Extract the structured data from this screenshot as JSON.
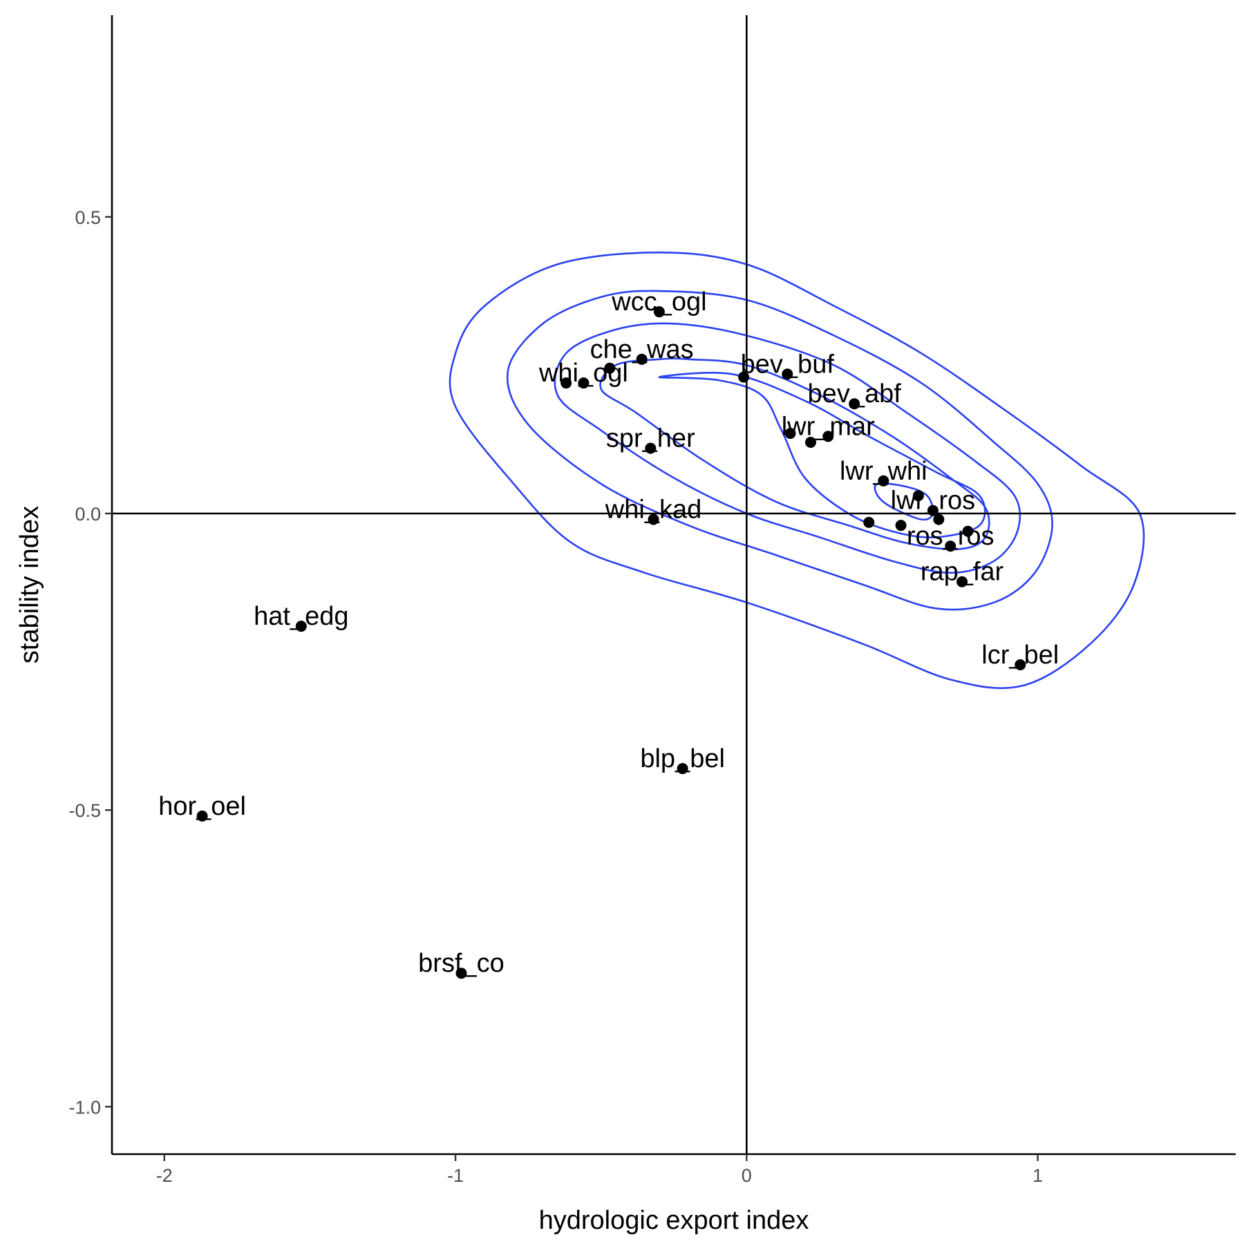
{
  "chart_data": {
    "type": "scatter",
    "title": "",
    "xlabel": "hydrologic export index",
    "ylabel": "stability index",
    "xlim": [
      -2.18,
      1.68
    ],
    "ylim": [
      -1.08,
      0.84
    ],
    "x_ticks": [
      {
        "value": -2,
        "label": "-2"
      },
      {
        "value": -1,
        "label": "-1"
      },
      {
        "value": 0,
        "label": "0"
      },
      {
        "value": 1,
        "label": "1"
      }
    ],
    "y_ticks": [
      {
        "value": 0.5,
        "label": "0.5"
      },
      {
        "value": 0.0,
        "label": "0.0"
      },
      {
        "value": -0.5,
        "label": "-0.5"
      },
      {
        "value": -1.0,
        "label": "-1.0"
      }
    ],
    "reference_lines": {
      "x": 0,
      "y": 0
    },
    "grid": false,
    "legend": "none",
    "point_color": "#000000",
    "contour_color": "#2a41f0",
    "points": [
      {
        "label": "wcc_ogl",
        "x": -0.3,
        "y": 0.34
      },
      {
        "label": "che_was",
        "x": -0.36,
        "y": 0.26
      },
      {
        "label": "",
        "x": -0.47,
        "y": 0.245
      },
      {
        "label": "whi_ogl",
        "x": -0.56,
        "y": 0.22
      },
      {
        "label": "",
        "x": -0.62,
        "y": 0.22
      },
      {
        "label": "bev_buf",
        "x": 0.14,
        "y": 0.235
      },
      {
        "label": "",
        "x": -0.01,
        "y": 0.23
      },
      {
        "label": "bev_abf",
        "x": 0.37,
        "y": 0.185
      },
      {
        "label": "lwr_mar",
        "x": 0.28,
        "y": 0.13
      },
      {
        "label": "",
        "x": 0.22,
        "y": 0.12
      },
      {
        "label": "",
        "x": 0.15,
        "y": 0.135
      },
      {
        "label": "spr_her",
        "x": -0.33,
        "y": 0.11
      },
      {
        "label": "lwr_whi",
        "x": 0.47,
        "y": 0.055
      },
      {
        "label": "",
        "x": 0.59,
        "y": 0.03
      },
      {
        "label": "lwr_ros",
        "x": 0.64,
        "y": 0.005
      },
      {
        "label": "",
        "x": 0.66,
        "y": -0.01
      },
      {
        "label": "",
        "x": 0.42,
        "y": -0.015
      },
      {
        "label": "",
        "x": 0.53,
        "y": -0.02
      },
      {
        "label": "",
        "x": 0.76,
        "y": -0.03
      },
      {
        "label": "ros_ros",
        "x": 0.7,
        "y": -0.055
      },
      {
        "label": "whi_kad",
        "x": -0.32,
        "y": -0.01
      },
      {
        "label": "rap_far",
        "x": 0.74,
        "y": -0.115
      },
      {
        "label": "lcr_bel",
        "x": 0.94,
        "y": -0.255
      },
      {
        "label": "hat_edg",
        "x": -1.53,
        "y": -0.19
      },
      {
        "label": "blp_bel",
        "x": -0.22,
        "y": -0.43
      },
      {
        "label": "hor_oel",
        "x": -1.87,
        "y": -0.51
      },
      {
        "label": "brsf_co",
        "x": -0.98,
        "y": -0.775
      }
    ],
    "contours": [
      [
        [
          -0.3,
          0.44
        ],
        [
          0.0,
          0.42
        ],
        [
          0.3,
          0.35
        ],
        [
          0.6,
          0.27
        ],
        [
          0.9,
          0.17
        ],
        [
          1.15,
          0.08
        ],
        [
          1.35,
          0.0
        ],
        [
          1.33,
          -0.12
        ],
        [
          1.18,
          -0.22
        ],
        [
          0.95,
          -0.29
        ],
        [
          0.7,
          -0.28
        ],
        [
          0.4,
          -0.22
        ],
        [
          0.0,
          -0.15
        ],
        [
          -0.35,
          -0.1
        ],
        [
          -0.6,
          -0.05
        ],
        [
          -0.8,
          0.05
        ],
        [
          -1.0,
          0.18
        ],
        [
          -1.0,
          0.27
        ],
        [
          -0.9,
          0.35
        ],
        [
          -0.65,
          0.42
        ],
        [
          -0.3,
          0.44
        ]
      ],
      [
        [
          -0.3,
          0.375
        ],
        [
          0.0,
          0.36
        ],
        [
          0.3,
          0.3
        ],
        [
          0.6,
          0.22
        ],
        [
          0.85,
          0.12
        ],
        [
          1.0,
          0.05
        ],
        [
          1.05,
          -0.02
        ],
        [
          0.99,
          -0.1
        ],
        [
          0.85,
          -0.15
        ],
        [
          0.65,
          -0.16
        ],
        [
          0.4,
          -0.12
        ],
        [
          0.1,
          -0.07
        ],
        [
          -0.2,
          -0.02
        ],
        [
          -0.5,
          0.05
        ],
        [
          -0.75,
          0.15
        ],
        [
          -0.82,
          0.24
        ],
        [
          -0.7,
          0.32
        ],
        [
          -0.5,
          0.365
        ],
        [
          -0.3,
          0.375
        ]
      ],
      [
        [
          -0.25,
          0.32
        ],
        [
          0.0,
          0.3
        ],
        [
          0.3,
          0.25
        ],
        [
          0.55,
          0.17
        ],
        [
          0.78,
          0.09
        ],
        [
          0.92,
          0.03
        ],
        [
          0.93,
          -0.03
        ],
        [
          0.85,
          -0.08
        ],
        [
          0.7,
          -0.1
        ],
        [
          0.5,
          -0.08
        ],
        [
          0.25,
          -0.04
        ],
        [
          0.0,
          0.0
        ],
        [
          -0.25,
          0.06
        ],
        [
          -0.5,
          0.14
        ],
        [
          -0.65,
          0.2
        ],
        [
          -0.62,
          0.27
        ],
        [
          -0.45,
          0.31
        ],
        [
          -0.25,
          0.32
        ]
      ],
      [
        [
          -0.2,
          0.26
        ],
        [
          0.0,
          0.25
        ],
        [
          0.25,
          0.2
        ],
        [
          0.5,
          0.13
        ],
        [
          0.7,
          0.06
        ],
        [
          0.82,
          0.01
        ],
        [
          0.82,
          -0.04
        ],
        [
          0.73,
          -0.06
        ],
        [
          0.55,
          -0.05
        ],
        [
          0.35,
          -0.02
        ],
        [
          0.1,
          0.02
        ],
        [
          -0.15,
          0.09
        ],
        [
          -0.38,
          0.17
        ],
        [
          -0.5,
          0.21
        ],
        [
          -0.45,
          0.25
        ],
        [
          -0.3,
          0.26
        ],
        [
          -0.2,
          0.26
        ]
      ],
      [
        [
          -0.3,
          0.23
        ],
        [
          -0.1,
          0.225
        ],
        [
          0.05,
          0.2
        ],
        [
          0.12,
          0.14
        ],
        [
          0.2,
          0.06
        ],
        [
          0.35,
          0.0
        ],
        [
          0.5,
          -0.03
        ],
        [
          0.65,
          -0.04
        ],
        [
          0.8,
          -0.02
        ],
        [
          0.8,
          0.03
        ],
        [
          0.65,
          0.07
        ],
        [
          0.42,
          0.13
        ],
        [
          0.2,
          0.19
        ],
        [
          -0.05,
          0.235
        ],
        [
          -0.3,
          0.23
        ]
      ],
      [
        [
          0.45,
          0.05
        ],
        [
          0.55,
          0.045
        ],
        [
          0.62,
          0.03
        ],
        [
          0.64,
          0.0
        ],
        [
          0.6,
          -0.01
        ],
        [
          0.5,
          0.01
        ],
        [
          0.45,
          0.03
        ],
        [
          0.45,
          0.05
        ]
      ]
    ]
  }
}
